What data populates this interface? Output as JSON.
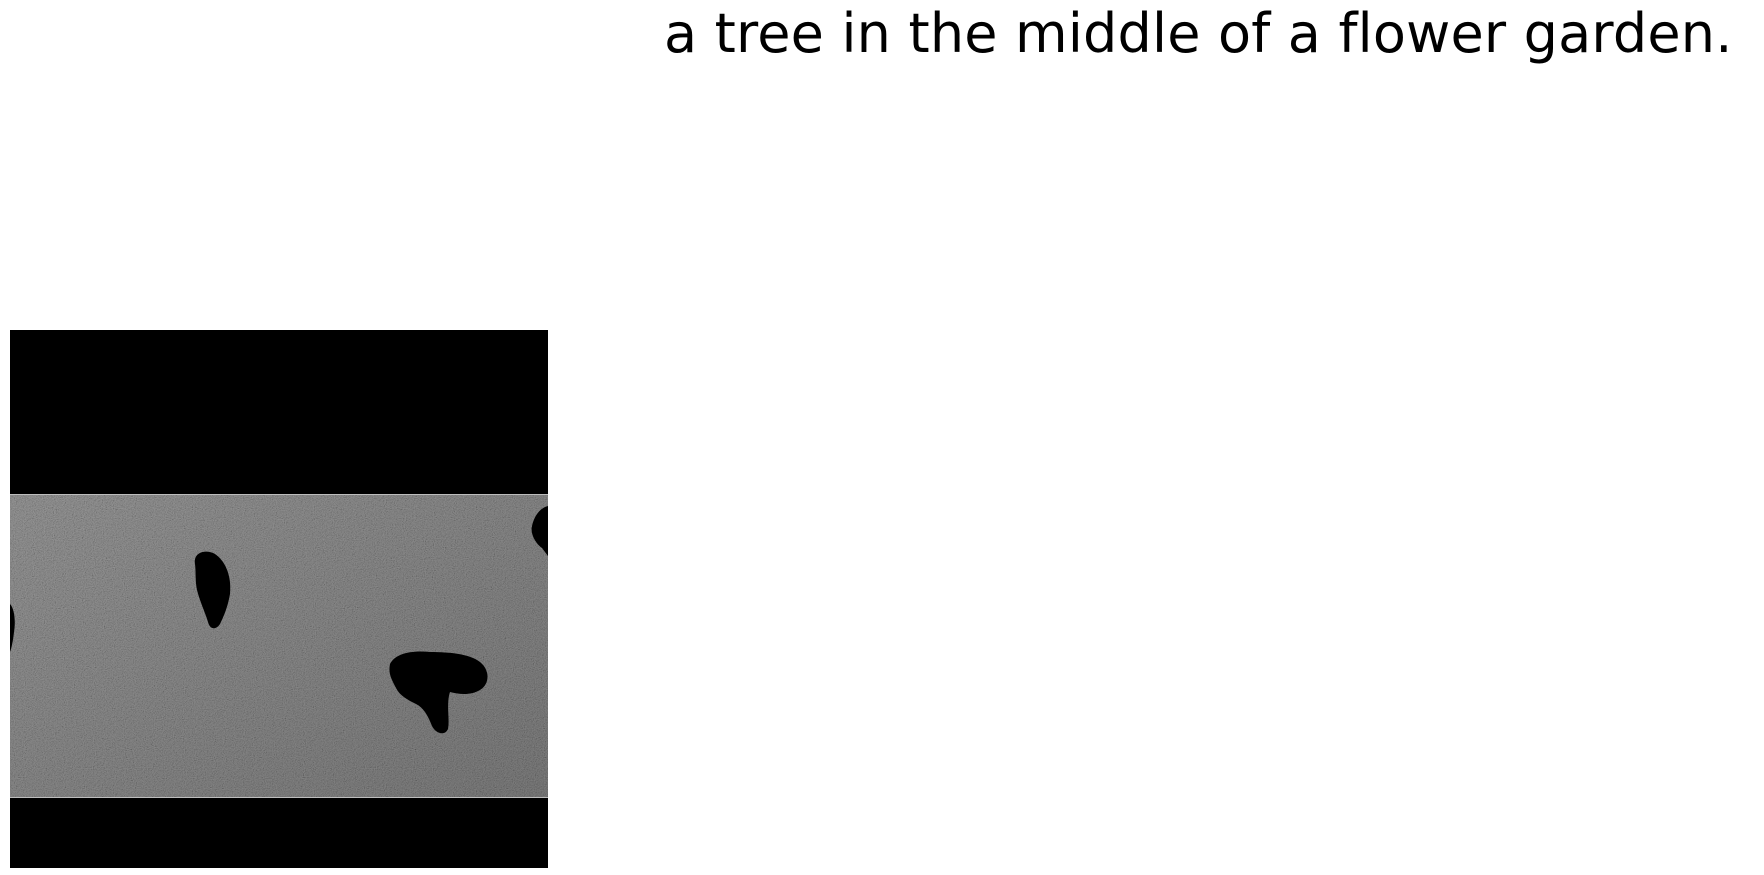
{
  "caption": {
    "text": "a tree in the middle of a flower garden."
  },
  "image": {
    "subject": "grayscale noisy grass field with dark animal silhouettes, letterboxed with black bands",
    "colors": {
      "band": "#000000",
      "ground_base": "#8a8a8a",
      "silhouette": "#000000"
    }
  }
}
